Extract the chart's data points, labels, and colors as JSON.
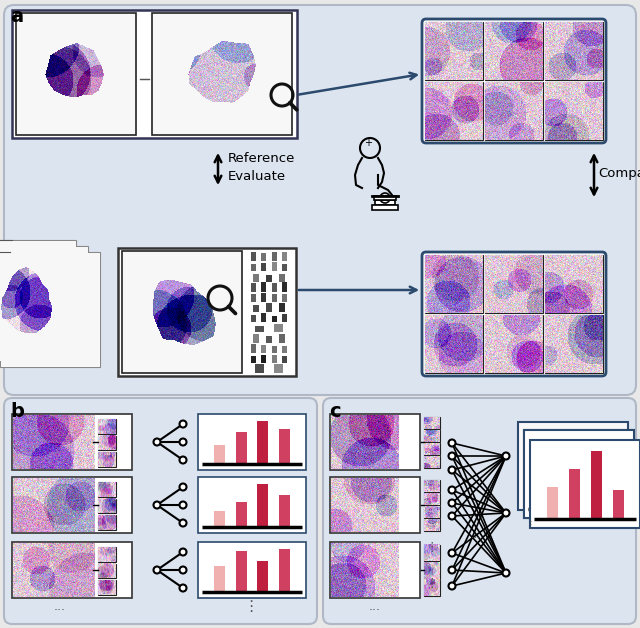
{
  "bg_color": "#e8e8e8",
  "panel_a_fc": "#dce4ef",
  "panel_bc_fc": "#dce4ef",
  "panel_ec": "#b0b8c8",
  "box_ec_dark": "#333355",
  "box_ec_blue": "#2c4a6e",
  "inner_fc": "#ffffff",
  "bar_colors_b": [
    "#f0b0b0",
    "#d04060",
    "#c02040",
    "#d04060"
  ],
  "bar_colors_c_back": [
    "#f0b0b0",
    "#d04060",
    "#c02040",
    "#d04060"
  ],
  "bar_colors_c_front": [
    "#f0b0b0",
    "#d04060",
    "#c02040",
    "#d04060"
  ],
  "text_reference": "Reference",
  "text_evaluate": "Evaluate",
  "text_compare": "Compare",
  "label_a": "a",
  "label_b": "b",
  "label_c": "c",
  "tissue_bg": "#f5eef5",
  "tissue_pink_light": "#e8b8cc",
  "tissue_pink_mid": "#d090b0",
  "tissue_pink_dark": "#a05080",
  "tissue_purple": "#806090",
  "patch_bg": "#f0e0ec"
}
